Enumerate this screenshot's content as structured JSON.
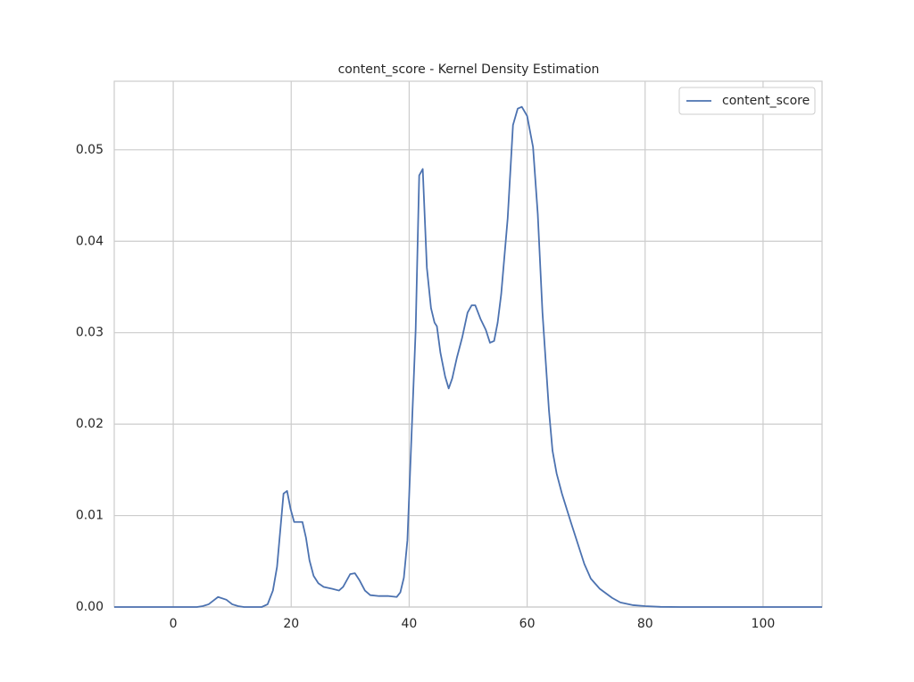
{
  "chart_data": {
    "type": "line",
    "title": "content_score - Kernel Density Estimation",
    "x": [
      -10,
      4,
      5,
      6,
      7,
      7.6,
      9,
      10,
      11,
      12,
      15,
      16,
      16.9,
      17.6,
      18.7,
      19.3,
      19.9,
      20.5,
      21.9,
      22.5,
      23.1,
      23.8,
      24.6,
      25.5,
      26.9,
      28.1,
      28.8,
      30,
      30.8,
      31.6,
      32.5,
      33.4,
      34.9,
      36.5,
      37.9,
      38.5,
      39.1,
      39.7,
      40.3,
      41.1,
      41.7,
      42.3,
      43,
      43.7,
      44.3,
      44.7,
      45.3,
      46.1,
      46.7,
      47.3,
      48.1,
      49,
      49.9,
      50.6,
      51.2,
      52.1,
      53,
      53.7,
      54.4,
      55,
      55.6,
      56.7,
      57.6,
      58.4,
      59.1,
      60,
      61,
      61.8,
      62.6,
      63.7,
      64.3,
      65,
      65.9,
      67.4,
      68.9,
      69.7,
      70.8,
      72.3,
      74.4,
      75.8,
      78,
      80,
      82.6,
      86,
      110
    ],
    "series": [
      {
        "name": "content_score",
        "color": "#4c72b0",
        "values": [
          0,
          0,
          0.0001,
          0.0003,
          0.0008,
          0.0011,
          0.0008,
          0.0003,
          0.0001,
          0,
          0,
          0.0003,
          0.0018,
          0.0044,
          0.0124,
          0.0127,
          0.0107,
          0.0093,
          0.0093,
          0.0076,
          0.0051,
          0.0034,
          0.0026,
          0.0022,
          0.002,
          0.0018,
          0.0022,
          0.0036,
          0.0037,
          0.0029,
          0.0018,
          0.0013,
          0.0012,
          0.0012,
          0.0011,
          0.0016,
          0.0032,
          0.0073,
          0.0171,
          0.0303,
          0.0472,
          0.0479,
          0.0371,
          0.0327,
          0.0311,
          0.0307,
          0.0278,
          0.0252,
          0.0239,
          0.025,
          0.0273,
          0.0295,
          0.0322,
          0.033,
          0.033,
          0.0315,
          0.0303,
          0.0289,
          0.0291,
          0.0311,
          0.0342,
          0.0425,
          0.0527,
          0.0545,
          0.0547,
          0.0537,
          0.0503,
          0.043,
          0.0322,
          0.0215,
          0.0171,
          0.0146,
          0.0124,
          0.0093,
          0.0063,
          0.0047,
          0.0031,
          0.002,
          0.001,
          0.0005,
          0.0002,
          0.0001,
          2e-05,
          0,
          0
        ]
      }
    ],
    "xlim": [
      -10,
      110
    ],
    "xticks": [
      0,
      20,
      40,
      60,
      80,
      100
    ],
    "ylim": [
      0,
      0.0575
    ],
    "yticks": [
      {
        "value": 0,
        "label": "0.00"
      },
      {
        "value": 0.01,
        "label": "0.01"
      },
      {
        "value": 0.02,
        "label": "0.02"
      },
      {
        "value": 0.03,
        "label": "0.03"
      },
      {
        "value": 0.04,
        "label": "0.04"
      },
      {
        "value": 0.05,
        "label": "0.05"
      }
    ],
    "grid": true,
    "legend": "upper-right"
  }
}
